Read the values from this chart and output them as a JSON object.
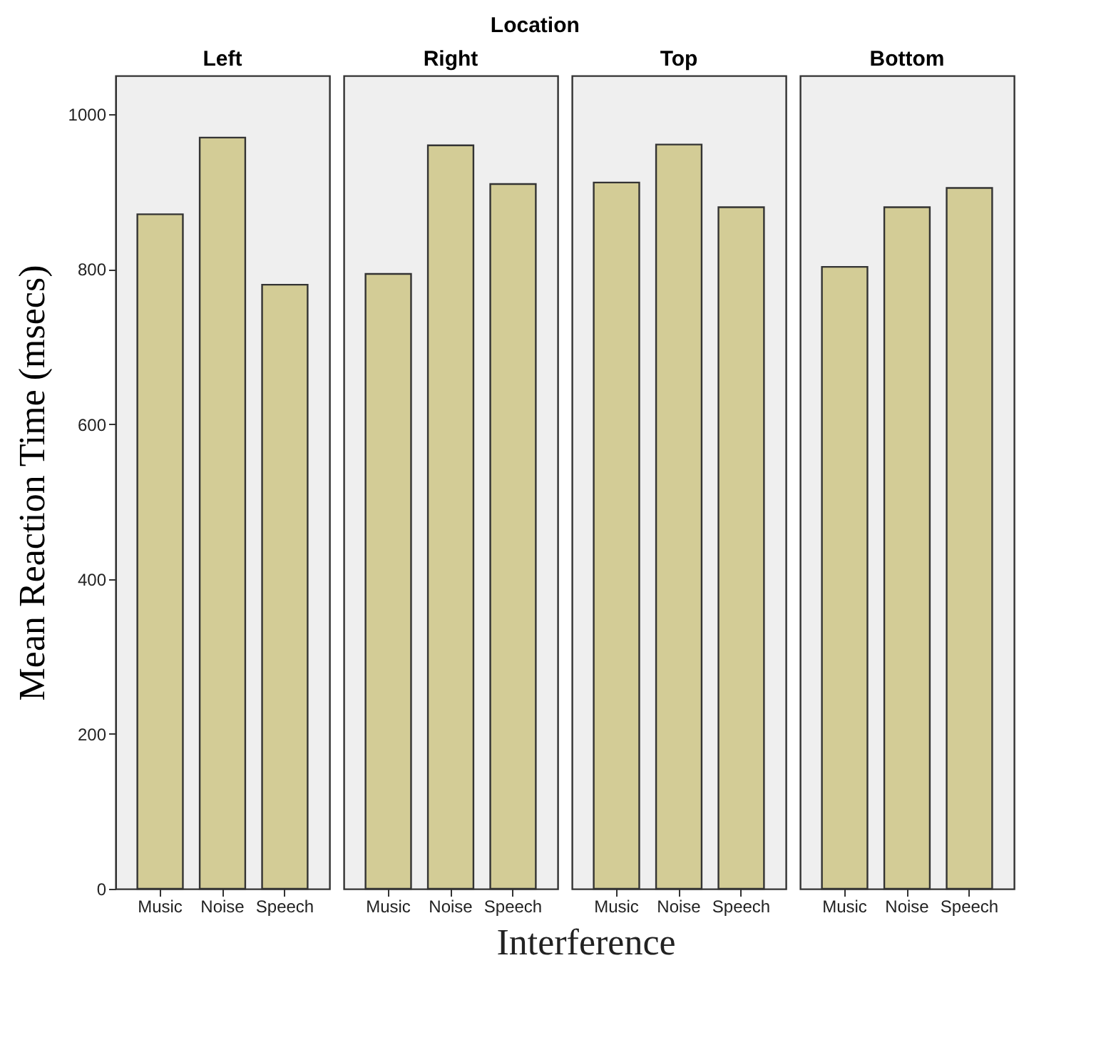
{
  "chart_data": [
    {
      "type": "bar",
      "title": "Left",
      "ylabel": "Mean Reaction Time (msecs)",
      "xlabel": "Interference",
      "annotations": [
        "Location"
      ],
      "categories": [
        "Music",
        "Noise",
        "Speech"
      ],
      "values": [
        871,
        970,
        780
      ],
      "color": "#d3cc96",
      "ylim": [
        0,
        1050
      ],
      "yticks": [
        0,
        200,
        400,
        600,
        800,
        1000
      ],
      "grid": false
    },
    {
      "type": "bar",
      "title": "Right",
      "categories": [
        "Music",
        "Noise",
        "Speech"
      ],
      "values": [
        794,
        960,
        910
      ],
      "color": "#d3cc96",
      "ylim": [
        0,
        1050
      ],
      "yticks": [
        0,
        200,
        400,
        600,
        800,
        1000
      ],
      "grid": false,
      "tick_labels": "x"
    },
    {
      "type": "bar",
      "title": "Top",
      "categories": [
        "Music",
        "Noise",
        "Speech"
      ],
      "values": [
        912,
        961,
        880
      ],
      "color": "#d3cc96",
      "ylim": [
        0,
        1050
      ],
      "yticks": [
        0,
        200,
        400,
        600,
        800,
        1000
      ],
      "grid": false,
      "tick_labels": "x"
    },
    {
      "type": "bar",
      "title": "Bottom",
      "categories": [
        "Music",
        "Noise",
        "Speech"
      ],
      "values": [
        803,
        880,
        905
      ],
      "color": "#d3cc96",
      "ylim": [
        0,
        1050
      ],
      "yticks": [
        0,
        200,
        400,
        600,
        800,
        1000
      ],
      "grid": false,
      "tick_labels": "x"
    }
  ]
}
